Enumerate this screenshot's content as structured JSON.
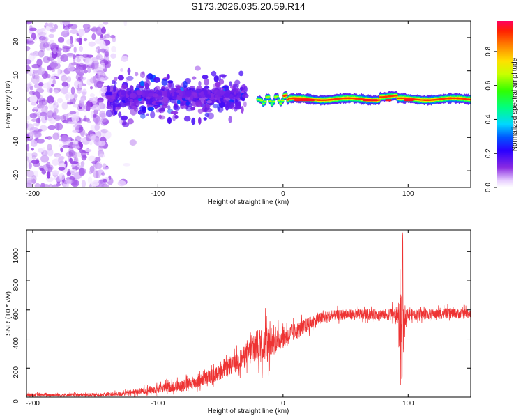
{
  "title": "S173.2026.035.20.59.R14",
  "colors": {
    "snr_line": "#ee3333",
    "axis": "#000000"
  },
  "chart_data": [
    {
      "type": "heatmap",
      "name": "spectrogram",
      "xlabel": "Height of straight line (km)",
      "ylabel": "Frequency (Hz)",
      "xlim": [
        -205,
        150
      ],
      "ylim": [
        -25,
        25
      ],
      "xticks": [
        -200,
        -100,
        0,
        100
      ],
      "yticks": [
        20,
        10,
        0,
        -10,
        -20
      ],
      "colorbar": {
        "label": "Normalized spectral amplitude",
        "range": [
          0,
          0.98
        ],
        "ticks": [
          0.0,
          0.2,
          0.4,
          0.6,
          0.8
        ]
      },
      "regions": [
        {
          "x": [
            -205,
            -140
          ],
          "freq": [
            -25,
            25
          ],
          "amplitude": [
            0.02,
            0.12
          ],
          "description": "diffuse broadband scatter"
        },
        {
          "x": [
            -140,
            -30
          ],
          "freq": [
            -10,
            9
          ],
          "amplitude": [
            0.1,
            0.2
          ],
          "description": "dense noisy cluster near 0-3 Hz"
        },
        {
          "x": [
            -20,
            150
          ],
          "freq": [
            0,
            3
          ],
          "amplitude": [
            0.3,
            0.95
          ],
          "description": "strong narrow band near 1-2 Hz"
        }
      ]
    },
    {
      "type": "line",
      "name": "snr",
      "xlabel": "Height of straight line (km)",
      "ylabel": "SNR (10 * v/v)",
      "xlim": [
        -205,
        150
      ],
      "ylim": [
        0,
        1150
      ],
      "xticks": [
        -200,
        -100,
        0,
        100
      ],
      "yticks": [
        0,
        200,
        400,
        600,
        800,
        1000
      ],
      "envelope": {
        "x": [
          -205,
          -180,
          -150,
          -130,
          -110,
          -90,
          -70,
          -55,
          -40,
          -30,
          -20,
          -15,
          -12,
          -10,
          -5,
          0,
          10,
          20,
          30,
          40,
          50,
          60,
          70,
          80,
          88,
          92,
          95,
          98,
          100,
          110,
          120,
          130,
          140,
          150
        ],
        "base": [
          15,
          15,
          15,
          22,
          45,
          70,
          100,
          150,
          220,
          290,
          350,
          380,
          370,
          360,
          390,
          410,
          450,
          500,
          540,
          560,
          570,
          570,
          570,
          570,
          570,
          560,
          450,
          560,
          570,
          570,
          570,
          575,
          575,
          575
        ],
        "amp": [
          20,
          20,
          20,
          25,
          40,
          60,
          70,
          80,
          100,
          130,
          200,
          240,
          220,
          150,
          130,
          120,
          100,
          80,
          70,
          60,
          60,
          60,
          60,
          60,
          80,
          100,
          650,
          80,
          60,
          60,
          60,
          60,
          60,
          60
        ]
      },
      "notable": [
        {
          "x": 95.5,
          "y": 1150,
          "label": "spike"
        },
        {
          "x": 95,
          "y": 115,
          "label": "dip"
        }
      ]
    }
  ]
}
